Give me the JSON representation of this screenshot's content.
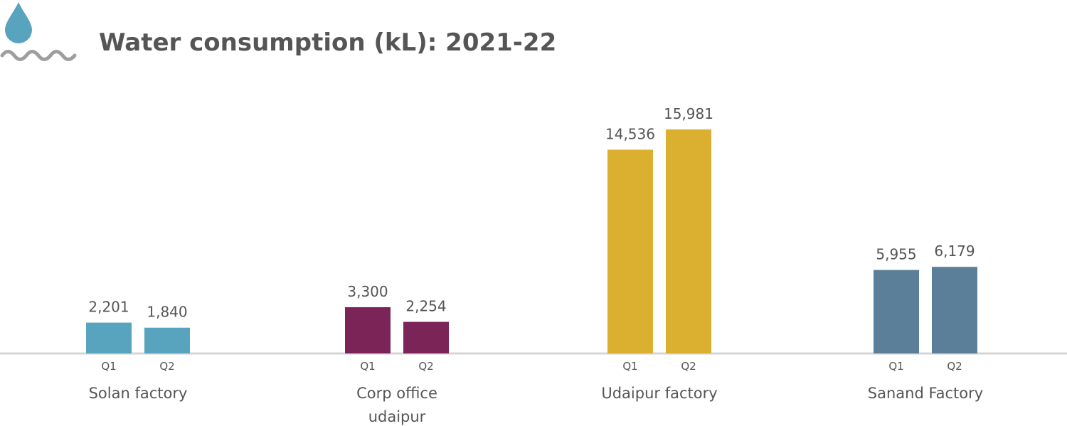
{
  "icon": "water-drop-with-waves-icon",
  "chart_data": {
    "type": "bar",
    "title": "Water consumption (kL): 2021-22",
    "xlabel": "",
    "ylabel": "",
    "ylim": [
      0,
      17000
    ],
    "grid": false,
    "legend": "none",
    "quarters": [
      "Q1",
      "Q2"
    ],
    "groups": [
      {
        "label": [
          "Solan factory"
        ],
        "color": "#58A3BE",
        "values": [
          2201,
          1840
        ],
        "value_labels": [
          "2,201",
          "1,840"
        ]
      },
      {
        "label": [
          "Corp office",
          "udaipur"
        ],
        "color": "#7A2458",
        "values": [
          3300,
          2254
        ],
        "value_labels": [
          "3,300",
          "2,254"
        ]
      },
      {
        "label": [
          "Udaipur factory"
        ],
        "color": "#DBAF2F",
        "values": [
          14536,
          15981
        ],
        "value_labels": [
          "14,536",
          "15,981"
        ]
      },
      {
        "label": [
          "Sanand Factory"
        ],
        "color": "#5B7F99",
        "values": [
          5955,
          6179
        ],
        "value_labels": [
          "5,955",
          "6,179"
        ]
      }
    ]
  }
}
